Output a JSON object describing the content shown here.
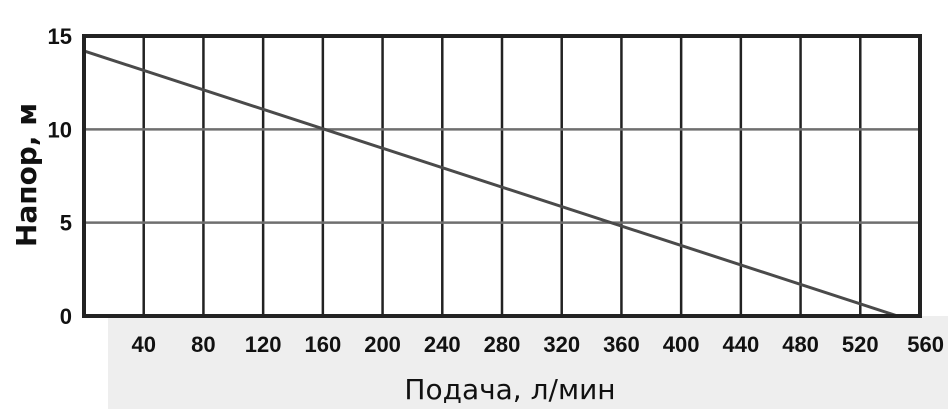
{
  "chart_data": {
    "type": "line",
    "xlabel": "Подача, л/мин",
    "ylabel": "Напор, м",
    "xlim": [
      0,
      560
    ],
    "ylim": [
      0,
      15
    ],
    "x_ticks": [
      "40",
      "80",
      "120",
      "160",
      "200",
      "240",
      "280",
      "320",
      "360",
      "400",
      "440",
      "480",
      "520",
      "560"
    ],
    "y_ticks": [
      "15",
      "10",
      "5",
      "0"
    ],
    "grid": true,
    "series": [
      {
        "x": [
          0,
          545
        ],
        "y": [
          14.2,
          0
        ]
      }
    ],
    "colors": {
      "line": "#4a4a4a",
      "grid_vertical": "#222222",
      "grid_horizontal": "#6f6f6f",
      "band": "#eeeeee"
    }
  }
}
